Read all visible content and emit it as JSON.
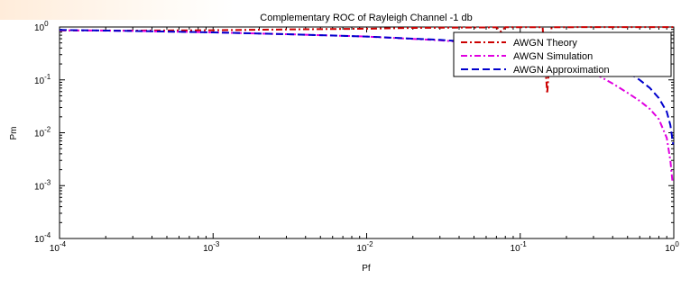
{
  "chart_data": {
    "type": "line",
    "title": "Complementary ROC of Rayleigh Channel -1 db",
    "xlabel": "Pf",
    "ylabel": "Pm",
    "xscale": "log",
    "yscale": "log",
    "xlim": [
      0.0001,
      1
    ],
    "ylim": [
      0.0001,
      1
    ],
    "x_ticks": [
      {
        "value": 0.0001,
        "base": "10",
        "exp": "-4"
      },
      {
        "value": 0.001,
        "base": "10",
        "exp": "-3"
      },
      {
        "value": 0.01,
        "base": "10",
        "exp": "-2"
      },
      {
        "value": 0.1,
        "base": "10",
        "exp": "-1"
      },
      {
        "value": 1,
        "base": "10",
        "exp": "0"
      }
    ],
    "y_ticks": [
      {
        "value": 0.0001,
        "base": "10",
        "exp": "-4"
      },
      {
        "value": 0.001,
        "base": "10",
        "exp": "-3"
      },
      {
        "value": 0.01,
        "base": "10",
        "exp": "-2"
      },
      {
        "value": 0.1,
        "base": "10",
        "exp": "-1"
      },
      {
        "value": 1,
        "base": "10",
        "exp": "0"
      }
    ],
    "grid": false,
    "legend_position": "top-right",
    "series": [
      {
        "name": "AWGN Theory",
        "color": "#cc0000",
        "dash": "dash-dot",
        "points": [
          [
            0.0001,
            0.86
          ],
          [
            0.0003,
            0.855
          ],
          [
            0.001,
            0.87
          ],
          [
            0.003,
            0.9
          ],
          [
            0.01,
            0.93
          ],
          [
            0.02,
            0.96
          ],
          [
            0.03,
            0.97
          ],
          [
            0.05,
            0.98
          ],
          [
            0.07,
            0.985
          ],
          [
            0.075,
            0.82
          ],
          [
            0.08,
            0.99
          ],
          [
            0.1,
            0.99
          ],
          [
            0.14,
            0.99
          ],
          [
            0.15,
            0.055
          ],
          [
            0.16,
            0.99
          ],
          [
            0.3,
            0.995
          ],
          [
            0.6,
            0.995
          ],
          [
            1,
            0.998
          ]
        ]
      },
      {
        "name": "AWGN Simulation",
        "color": "#e000e0",
        "dash": "dash-dot",
        "points": [
          [
            0.0001,
            0.87
          ],
          [
            0.0003,
            0.84
          ],
          [
            0.001,
            0.79
          ],
          [
            0.003,
            0.73
          ],
          [
            0.01,
            0.66
          ],
          [
            0.03,
            0.56
          ],
          [
            0.05,
            0.5
          ],
          [
            0.1,
            0.38
          ],
          [
            0.2,
            0.22
          ],
          [
            0.3,
            0.135
          ],
          [
            0.4,
            0.085
          ],
          [
            0.5,
            0.057
          ],
          [
            0.6,
            0.04
          ],
          [
            0.7,
            0.028
          ],
          [
            0.8,
            0.018
          ],
          [
            0.9,
            0.008
          ],
          [
            0.95,
            0.003
          ],
          [
            0.98,
            0.0012
          ]
        ]
      },
      {
        "name": "AWGN Approximation",
        "color": "#0000cc",
        "dash": "dash",
        "points": [
          [
            0.0001,
            0.88
          ],
          [
            0.0003,
            0.84
          ],
          [
            0.001,
            0.79
          ],
          [
            0.003,
            0.73
          ],
          [
            0.01,
            0.66
          ],
          [
            0.03,
            0.57
          ],
          [
            0.05,
            0.52
          ],
          [
            0.1,
            0.44
          ],
          [
            0.2,
            0.33
          ],
          [
            0.3,
            0.25
          ],
          [
            0.4,
            0.19
          ],
          [
            0.5,
            0.14
          ],
          [
            0.6,
            0.1
          ],
          [
            0.7,
            0.07
          ],
          [
            0.8,
            0.045
          ],
          [
            0.9,
            0.025
          ],
          [
            0.95,
            0.014
          ],
          [
            0.99,
            0.006
          ]
        ]
      }
    ]
  }
}
